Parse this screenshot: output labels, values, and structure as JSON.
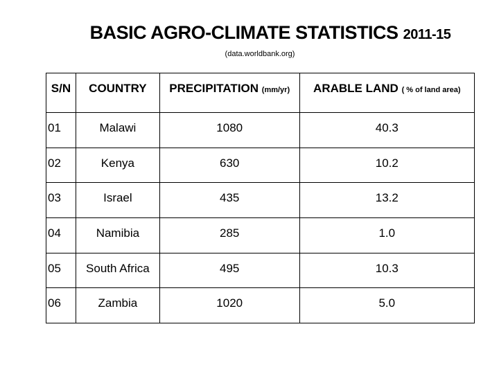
{
  "title": {
    "main": "BASIC AGRO-CLIMATE STATISTICS",
    "years": "2011-15",
    "source": "(data.worldbank.org)"
  },
  "table": {
    "headers": [
      {
        "label": "S/N",
        "unit": ""
      },
      {
        "label": "COUNTRY",
        "unit": ""
      },
      {
        "label": "PRECIPITATION",
        "unit": "(mm/yr)"
      },
      {
        "label": "ARABLE LAND",
        "unit": "( % of land area)"
      }
    ],
    "rows": [
      [
        "01",
        "Malawi",
        "1080",
        "40.3"
      ],
      [
        "02",
        "Kenya",
        "630",
        "10.2"
      ],
      [
        "03",
        "Israel",
        "435",
        "13.2"
      ],
      [
        "04",
        "Namibia",
        "285",
        "1.0"
      ],
      [
        "05",
        "South Africa",
        "495",
        "10.3"
      ],
      [
        "06",
        "Zambia",
        "1020",
        "5.0"
      ]
    ]
  }
}
